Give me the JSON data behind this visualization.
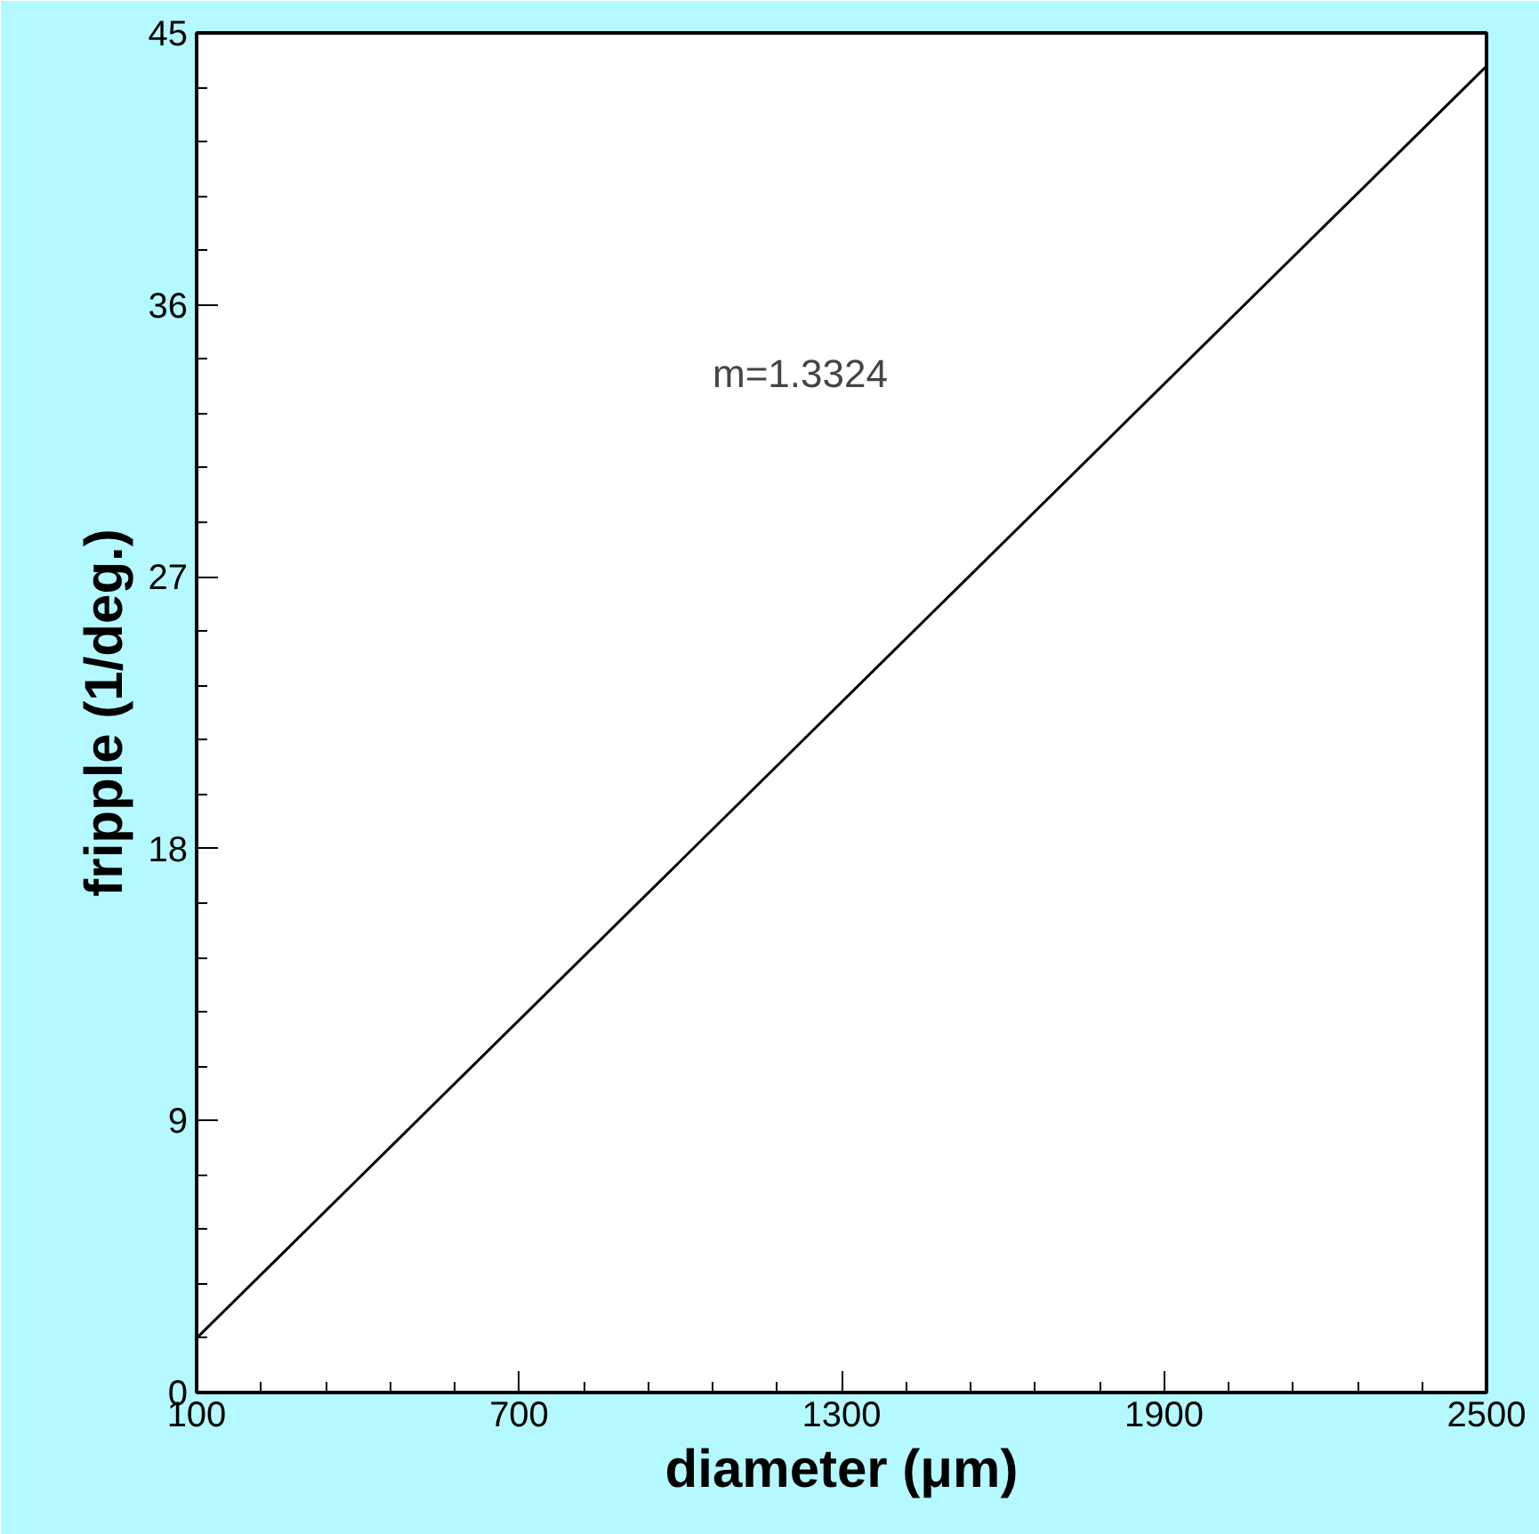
{
  "chart_data": {
    "type": "line",
    "xlabel": "diameter (μm)",
    "ylabel": "fripple (1/deg.)",
    "x": [
      100,
      2500
    ],
    "series": [
      {
        "color": "#000000",
        "values": [
          1.8,
          43.9
        ]
      }
    ],
    "xlim": [
      100,
      2500
    ],
    "ylim": [
      0,
      45
    ],
    "xticks": [
      100,
      700,
      1300,
      1900,
      2500
    ],
    "yticks": [
      0,
      9,
      18,
      27,
      36,
      45
    ],
    "annotations": [
      "m=1.3324"
    ],
    "grid": false,
    "marker": "none",
    "line_style": "solid"
  }
}
